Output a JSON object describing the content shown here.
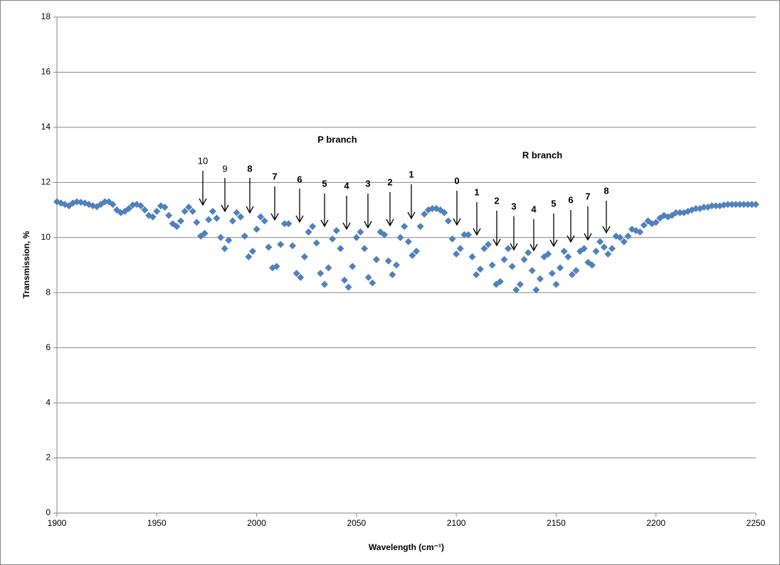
{
  "chart_data": {
    "type": "scatter",
    "x_label": "Wavelength (cm⁻¹)",
    "y_label": "Transmission, %",
    "xlim": [
      1900,
      2250
    ],
    "xticks": [
      1900,
      1950,
      2000,
      2050,
      2100,
      2150,
      2200,
      2250
    ],
    "ylim": [
      0,
      18
    ],
    "yticks": [
      0,
      2,
      4,
      6,
      8,
      10,
      12,
      14,
      16,
      18
    ],
    "grid": true,
    "annotations": [
      "P branch",
      "R branch",
      "10",
      "9",
      "8",
      "7",
      "6",
      "5",
      "4",
      "3",
      "2",
      "1",
      "0",
      "1",
      "2",
      "3",
      "4",
      "5",
      "6",
      "7",
      "8"
    ],
    "series": [
      {
        "color": "#4f81bd",
        "x": [
          1900,
          1902,
          1904,
          1906,
          1908,
          1910,
          1912,
          1914,
          1916,
          1918,
          1920,
          1922,
          1924,
          1926,
          1928,
          1930,
          1932,
          1934,
          1936,
          1938,
          1940,
          1942,
          1944,
          1946,
          1948,
          1950,
          1952,
          1954,
          1956,
          1958,
          1960,
          1962,
          1964,
          1966,
          1968,
          1970,
          1972,
          1974,
          1976,
          1978,
          1980,
          1982,
          1984,
          1986,
          1988,
          1990,
          1992,
          1994,
          1996,
          1998,
          2000,
          2002,
          2004,
          2006,
          2008,
          2010,
          2012,
          2014,
          2016,
          2018,
          2020,
          2022,
          2024,
          2026,
          2028,
          2030,
          2032,
          2034,
          2036,
          2038,
          2040,
          2042,
          2044,
          2046,
          2048,
          2050,
          2052,
          2054,
          2056,
          2058,
          2060,
          2062,
          2064,
          2066,
          2068,
          2070,
          2072,
          2074,
          2076,
          2078,
          2080,
          2082,
          2084,
          2086,
          2088,
          2090,
          2092,
          2094,
          2096,
          2098,
          2100,
          2102,
          2104,
          2106,
          2108,
          2110,
          2112,
          2114,
          2116,
          2118,
          2120,
          2122,
          2124,
          2126,
          2128,
          2130,
          2132,
          2134,
          2136,
          2138,
          2140,
          2142,
          2144,
          2146,
          2148,
          2150,
          2152,
          2154,
          2156,
          2158,
          2160,
          2162,
          2164,
          2166,
          2168,
          2170,
          2172,
          2174,
          2176,
          2178,
          2180,
          2182,
          2184,
          2186,
          2188,
          2190,
          2192,
          2194,
          2196,
          2198,
          2200,
          2202,
          2204,
          2206,
          2208,
          2210,
          2212,
          2214,
          2216,
          2218,
          2220,
          2222,
          2224,
          2226,
          2228,
          2230,
          2232,
          2234,
          2236,
          2238,
          2240,
          2242,
          2244,
          2246,
          2248,
          2250
        ],
        "values": [
          11.3,
          11.25,
          11.2,
          11.15,
          11.25,
          11.3,
          11.28,
          11.25,
          11.2,
          11.15,
          11.12,
          11.2,
          11.3,
          11.3,
          11.2,
          11.0,
          10.9,
          10.95,
          11.05,
          11.18,
          11.2,
          11.15,
          11.0,
          10.8,
          10.75,
          10.95,
          11.15,
          11.1,
          10.8,
          10.5,
          10.4,
          10.6,
          10.95,
          11.1,
          10.95,
          10.55,
          10.05,
          10.15,
          10.65,
          10.95,
          10.7,
          10.0,
          9.6,
          9.9,
          10.6,
          10.9,
          10.75,
          10.05,
          9.3,
          9.5,
          10.3,
          10.75,
          10.6,
          9.65,
          8.9,
          8.95,
          9.75,
          10.5,
          10.5,
          9.7,
          8.7,
          8.55,
          9.3,
          10.2,
          10.4,
          9.8,
          8.7,
          8.3,
          8.9,
          9.95,
          10.25,
          9.6,
          8.45,
          8.2,
          8.95,
          10.0,
          10.2,
          9.6,
          8.55,
          8.35,
          9.2,
          10.2,
          10.1,
          9.15,
          8.65,
          9.0,
          10.0,
          10.4,
          9.85,
          9.35,
          9.5,
          10.4,
          10.85,
          11.0,
          11.05,
          11.05,
          11.0,
          10.9,
          10.6,
          9.95,
          9.4,
          9.6,
          10.1,
          10.1,
          9.3,
          8.65,
          8.85,
          9.6,
          9.75,
          9.0,
          8.3,
          8.4,
          9.2,
          9.6,
          8.95,
          8.1,
          8.3,
          9.2,
          9.45,
          8.8,
          8.1,
          8.5,
          9.3,
          9.4,
          8.7,
          8.3,
          8.9,
          9.5,
          9.3,
          8.65,
          8.8,
          9.5,
          9.6,
          9.1,
          9.0,
          9.5,
          9.85,
          9.65,
          9.4,
          9.6,
          10.05,
          10.0,
          9.85,
          10.05,
          10.3,
          10.25,
          10.2,
          10.45,
          10.6,
          10.5,
          10.55,
          10.7,
          10.8,
          10.75,
          10.8,
          10.9,
          10.9,
          10.9,
          10.95,
          11.0,
          11.05,
          11.05,
          11.1,
          11.1,
          11.15,
          11.15,
          11.15,
          11.18,
          11.2,
          11.2,
          11.2,
          11.2,
          11.2,
          11.2,
          11.2,
          11.2
        ]
      }
    ]
  }
}
